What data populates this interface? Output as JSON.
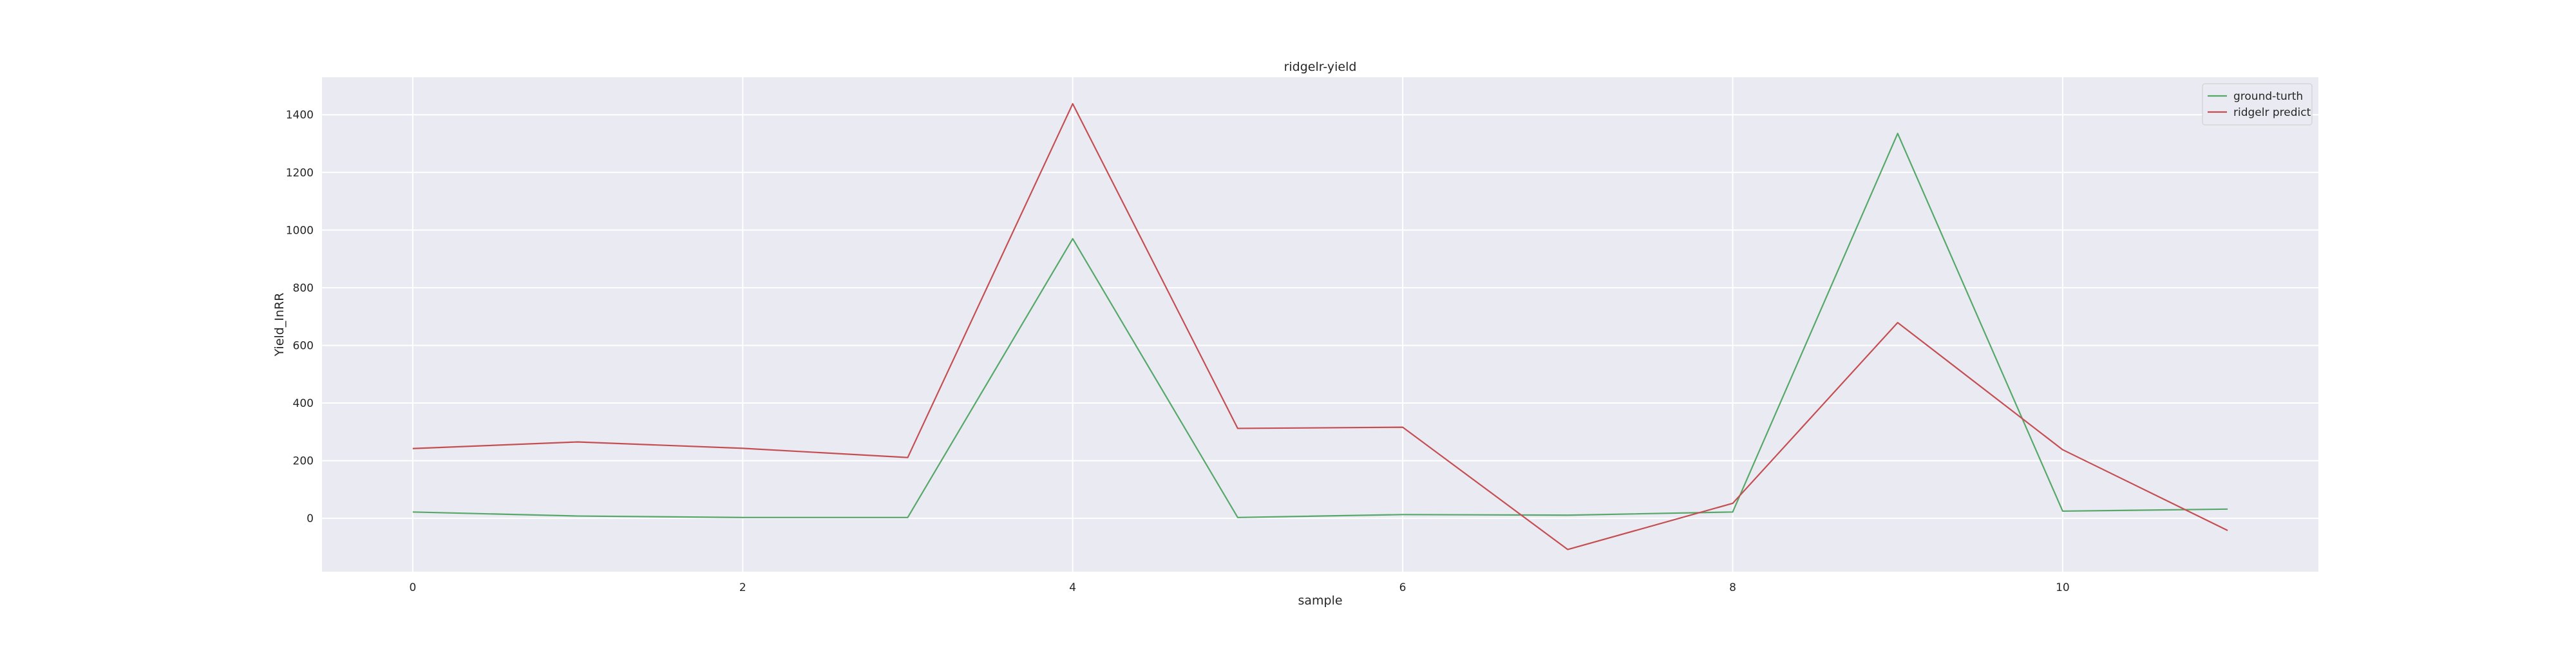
{
  "chart_data": {
    "type": "line",
    "title": "ridgelr-yield",
    "xlabel": "sample",
    "ylabel": "Yield_InRR",
    "x": [
      0,
      1,
      2,
      3,
      4,
      5,
      6,
      7,
      8,
      9,
      10,
      11
    ],
    "x_ticks": [
      0,
      2,
      4,
      6,
      8,
      10
    ],
    "y_ticks": [
      0,
      200,
      400,
      600,
      800,
      1000,
      1200,
      1400
    ],
    "xlim": [
      -0.55,
      11.55
    ],
    "ylim": [
      -185,
      1530
    ],
    "grid": true,
    "legend_position": "upper right",
    "series": [
      {
        "name": "ground-turth",
        "color": "#55a868",
        "values": [
          22,
          8,
          3,
          3,
          970,
          3,
          13,
          11,
          22,
          1335,
          25,
          32
        ]
      },
      {
        "name": "ridgelr predict",
        "color": "#c44e52",
        "values": [
          242,
          265,
          243,
          211,
          1438,
          312,
          316,
          -108,
          52,
          679,
          238,
          -42
        ]
      }
    ]
  }
}
